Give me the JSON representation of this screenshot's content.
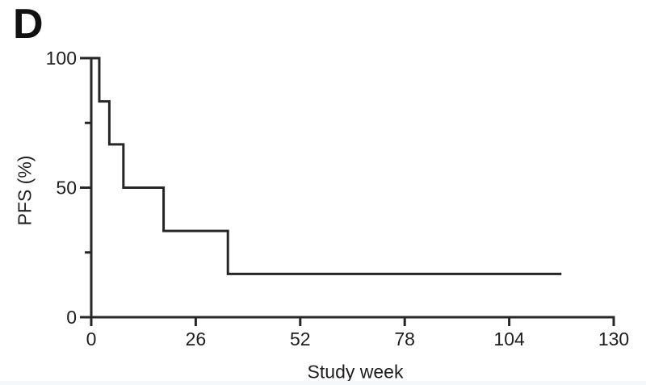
{
  "chart_data": {
    "type": "line",
    "subtype": "kaplan-meier-step",
    "panel_label": "D",
    "title": "",
    "xlabel": "Study week",
    "ylabel": "PFS (%)",
    "xlim": [
      0,
      130
    ],
    "ylim": [
      0,
      100
    ],
    "x_ticks": [
      0,
      26,
      52,
      78,
      104,
      130
    ],
    "y_ticks": [
      0,
      50,
      100
    ],
    "y_minor_ticks": [
      25,
      75
    ],
    "grid": false,
    "legend": false,
    "line_color": "#262626",
    "axis_color": "#262626",
    "text_color": "#1e1e1e",
    "series": [
      {
        "name": "PFS",
        "step_points": [
          [
            0,
            100
          ],
          [
            2,
            100
          ],
          [
            2,
            83.3
          ],
          [
            4.5,
            83.3
          ],
          [
            4.5,
            66.7
          ],
          [
            8,
            66.7
          ],
          [
            8,
            50
          ],
          [
            18,
            50
          ],
          [
            18,
            33.3
          ],
          [
            34,
            33.3
          ],
          [
            34,
            16.7
          ],
          [
            117,
            16.7
          ]
        ]
      }
    ]
  }
}
